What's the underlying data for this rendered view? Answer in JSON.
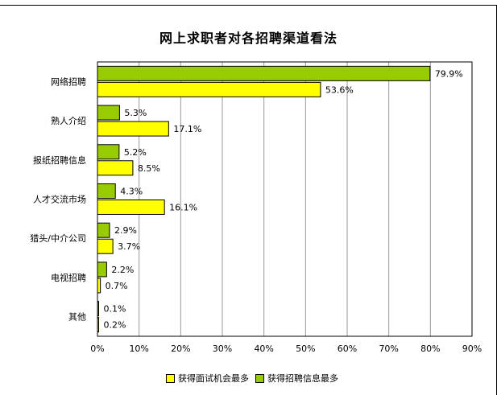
{
  "chart_data": {
    "type": "bar",
    "orientation": "horizontal",
    "title": "网上求职者对各招聘渠道看法",
    "categories": [
      "网络招聘",
      "熟人介绍",
      "报纸招聘信息",
      "人才交流市场",
      "猎头/中介公司",
      "电视招聘",
      "其他"
    ],
    "series": [
      {
        "name": "获得招聘信息最多",
        "color": "#99cc00",
        "values": [
          79.9,
          5.3,
          5.2,
          4.3,
          2.9,
          2.2,
          0.1
        ]
      },
      {
        "name": "获得面试机会最多",
        "color": "#ffff00",
        "values": [
          53.6,
          17.1,
          8.5,
          16.1,
          3.7,
          0.7,
          0.2
        ]
      }
    ],
    "value_labels": [
      [
        "79.9%",
        "5.3%",
        "5.2%",
        "4.3%",
        "2.9%",
        "2.2%",
        "0.1%"
      ],
      [
        "53.6%",
        "17.1%",
        "8.5%",
        "16.1%",
        "3.7%",
        "0.7%",
        "0.2%"
      ]
    ],
    "xlim": [
      0,
      90
    ],
    "xticks": [
      "0%",
      "10%",
      "20%",
      "30%",
      "40%",
      "50%",
      "60%",
      "70%",
      "80%",
      "90%"
    ],
    "grid": true,
    "legend_position": "bottom",
    "legend_order": [
      1,
      0
    ]
  }
}
